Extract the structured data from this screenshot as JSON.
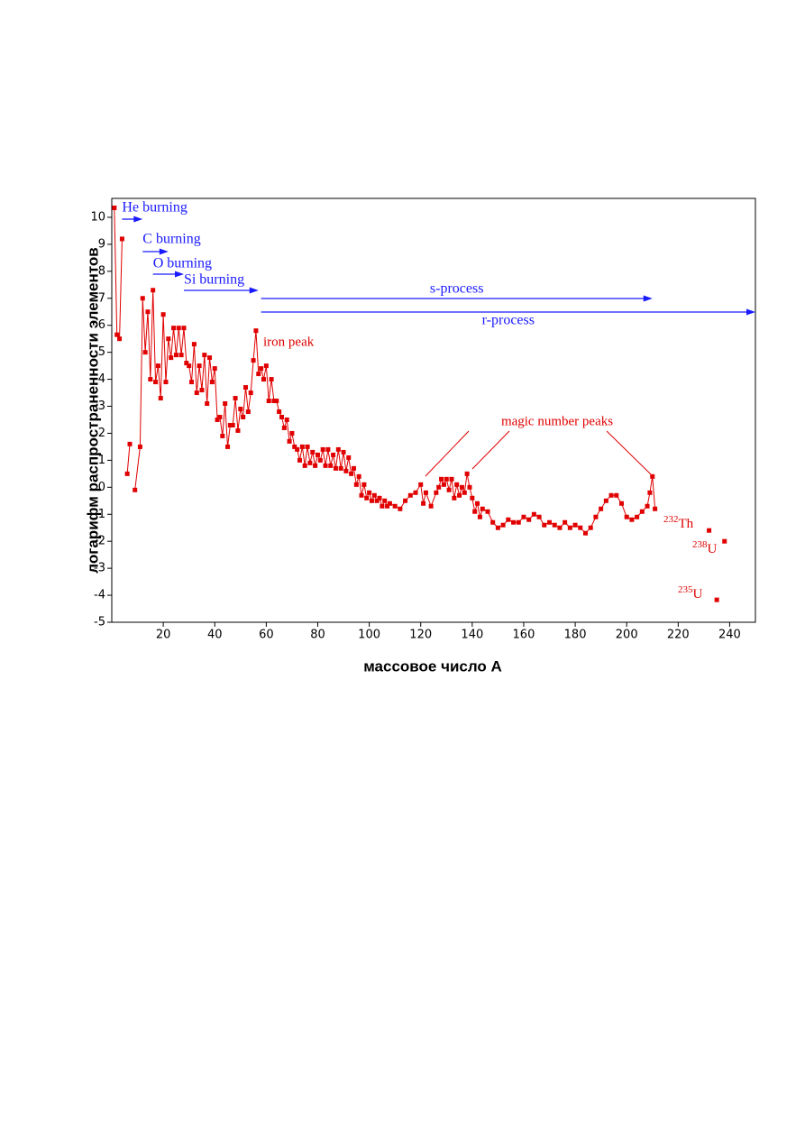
{
  "chart_data": {
    "type": "line",
    "xlabel": "массовое число A",
    "ylabel": "логарифм распространенности элементов",
    "xlim": [
      0,
      250
    ],
    "ylim": [
      -5,
      10.7
    ],
    "xticks": [
      20,
      40,
      60,
      80,
      100,
      120,
      140,
      160,
      180,
      200,
      220,
      240
    ],
    "yticks": [
      -5,
      -4,
      -3,
      -2,
      -1,
      0,
      1,
      2,
      3,
      4,
      5,
      6,
      7,
      8,
      9,
      10
    ],
    "series": [
      {
        "color": "#e00000",
        "x": [
          1,
          2,
          3,
          4,
          5,
          6,
          7,
          8,
          9,
          11,
          12,
          13,
          14,
          15,
          16,
          17,
          18,
          19,
          20,
          21,
          22,
          23,
          24,
          25,
          26,
          27,
          28,
          29,
          30,
          31,
          32,
          33,
          34,
          35,
          36,
          37,
          38,
          39,
          40,
          41,
          42,
          43,
          44,
          45,
          46,
          47,
          48,
          49,
          50,
          51,
          52,
          53,
          54,
          55,
          56,
          57,
          58,
          59,
          60,
          61,
          62,
          63,
          64,
          65,
          66,
          67,
          68,
          69,
          70,
          71,
          72,
          73,
          74,
          75,
          76,
          77,
          78,
          79,
          80,
          81,
          82,
          83,
          84,
          85,
          86,
          87,
          88,
          89,
          90,
          91,
          92,
          93,
          94,
          95,
          96,
          97,
          98,
          99,
          100,
          101,
          102,
          103,
          104,
          105,
          106,
          107,
          108,
          110,
          112,
          114,
          116,
          118,
          120,
          121,
          122,
          124,
          126,
          127,
          128,
          129,
          130,
          131,
          132,
          133,
          134,
          135,
          136,
          137,
          138,
          139,
          140,
          141,
          142,
          143,
          144,
          146,
          148,
          150,
          152,
          154,
          156,
          158,
          160,
          162,
          164,
          166,
          168,
          170,
          172,
          174,
          176,
          178,
          180,
          182,
          184,
          186,
          188,
          190,
          192,
          194,
          196,
          198,
          200,
          202,
          204,
          206,
          208,
          209,
          210,
          211
        ],
        "values": [
          10.35,
          5.65,
          5.5,
          9.2,
          null,
          0.5,
          1.6,
          null,
          -0.1,
          1.5,
          7.0,
          5.0,
          6.5,
          4.0,
          7.3,
          3.9,
          4.5,
          3.3,
          6.4,
          3.9,
          5.5,
          4.8,
          5.9,
          4.9,
          5.9,
          4.9,
          5.9,
          4.6,
          4.5,
          3.9,
          5.3,
          3.5,
          4.5,
          3.6,
          4.9,
          3.1,
          4.8,
          3.9,
          4.4,
          2.5,
          2.6,
          1.9,
          3.1,
          1.5,
          2.3,
          2.3,
          3.3,
          2.1,
          2.9,
          2.6,
          3.7,
          2.8,
          3.5,
          4.7,
          5.8,
          4.2,
          4.4,
          4.0,
          4.5,
          3.2,
          4.0,
          3.2,
          3.2,
          2.8,
          2.6,
          2.2,
          2.5,
          1.7,
          2.0,
          1.5,
          1.4,
          1.0,
          1.5,
          0.8,
          1.5,
          0.9,
          1.3,
          0.8,
          1.2,
          1.0,
          1.4,
          0.8,
          1.4,
          0.8,
          1.2,
          0.7,
          1.4,
          0.7,
          1.3,
          0.6,
          1.1,
          0.5,
          0.7,
          0.1,
          0.4,
          -0.3,
          0.1,
          -0.4,
          -0.2,
          -0.5,
          -0.3,
          -0.5,
          -0.4,
          -0.7,
          -0.5,
          -0.7,
          -0.6,
          -0.7,
          -0.8,
          -0.5,
          -0.3,
          -0.2,
          0.1,
          -0.6,
          -0.2,
          -0.7,
          -0.2,
          0.0,
          0.3,
          0.1,
          0.3,
          -0.1,
          0.3,
          -0.4,
          0.1,
          -0.3,
          0.0,
          -0.2,
          0.5,
          0.0,
          -0.4,
          -0.9,
          -0.6,
          -1.1,
          -0.8,
          -0.9,
          -1.3,
          -1.5,
          -1.4,
          -1.2,
          -1.3,
          -1.3,
          -1.1,
          -1.2,
          -1.0,
          -1.1,
          -1.4,
          -1.3,
          -1.4,
          -1.5,
          -1.3,
          -1.5,
          -1.4,
          -1.5,
          -1.7,
          -1.5,
          -1.1,
          -0.8,
          -0.5,
          -0.3,
          -0.3,
          -0.6,
          -1.1,
          -1.2,
          -1.1,
          -0.9,
          -0.7,
          -0.2,
          0.4,
          -0.8
        ]
      },
      {
        "color": "#e00000",
        "points_only": true,
        "x": [
          232,
          238,
          235
        ],
        "values": [
          -1.6,
          -2.0,
          -4.17
        ]
      }
    ],
    "processes": [
      {
        "label": "He burning",
        "from": 4,
        "to": 12
      },
      {
        "label": "C burning",
        "from": 12,
        "to": 22
      },
      {
        "label": "O burning",
        "from": 16,
        "to": 28
      },
      {
        "label": "Si burning",
        "from": 28,
        "to": 57
      },
      {
        "label": "s-process",
        "from": 58,
        "to": 210
      },
      {
        "label": "r-process",
        "from": 58,
        "to": 250
      }
    ],
    "annotations": [
      "iron peak",
      "magic number peaks"
    ],
    "isotope_labels": [
      {
        "mass": "232",
        "symbol": "Th"
      },
      {
        "mass": "238",
        "symbol": "U"
      },
      {
        "mass": "235",
        "symbol": "U"
      }
    ]
  }
}
